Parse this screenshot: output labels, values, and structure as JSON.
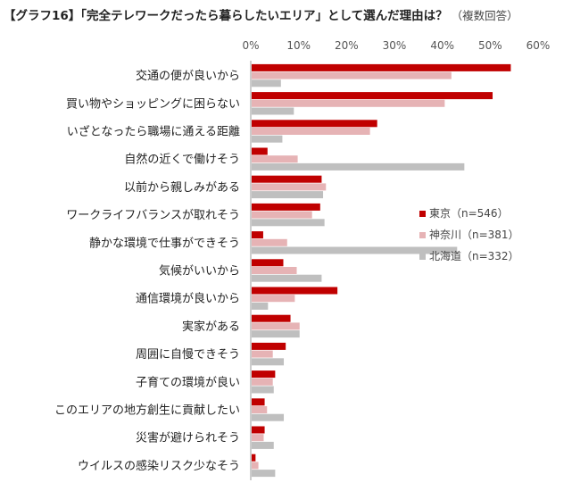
{
  "title": "【グラフ16】「完全テレワークだったら暮らしたいエリア」として選んだ理由は？",
  "title_note": "（複数回答）",
  "chart_data": {
    "type": "bar",
    "orientation": "horizontal",
    "title": "【グラフ16】「完全テレワークだったら暮らしたいエリア」として選んだ理由は？（複数回答）",
    "xlim": [
      0,
      60
    ],
    "ticks": [
      "0%",
      "10%",
      "20%",
      "30%",
      "40%",
      "50%",
      "60%"
    ],
    "tick_values": [
      0,
      10,
      20,
      30,
      40,
      50,
      60
    ],
    "grid": false,
    "legend_position": "right",
    "categories": [
      "交通の便が良いから",
      "買い物やショッピングに困らない",
      "いざとなったら職場に通える距離",
      "自然の近くで働けそう",
      "以前から親しみがある",
      "ワークライフバランスが取れそう",
      "静かな環境で仕事ができそう",
      "気候がいいから",
      "通信環境が良いから",
      "実家がある",
      "周囲に自慢できそう",
      "子育ての環境が良い",
      "このエリアの地方創生に貢献したい",
      "災害が避けられそう",
      "ウイルスの感染リスク少なそう"
    ],
    "series": [
      {
        "name": "東京（n=546）",
        "color": "#c00000",
        "values": [
          54.3,
          50.5,
          26.4,
          3.5,
          14.8,
          14.5,
          2.6,
          6.8,
          18.1,
          8.3,
          7.3,
          5.1,
          2.9,
          2.9,
          1.0
        ]
      },
      {
        "name": "神奈川（n=381）",
        "color": "#e6b3b5",
        "values": [
          41.9,
          40.5,
          24.9,
          9.8,
          15.7,
          12.8,
          7.6,
          9.6,
          9.2,
          10.2,
          4.6,
          4.6,
          3.4,
          2.7,
          1.6
        ]
      },
      {
        "name": "北海道（n=332）",
        "color": "#bfbfbf",
        "values": [
          6.3,
          9.0,
          6.6,
          44.6,
          15.1,
          15.4,
          43.1,
          14.8,
          3.6,
          10.2,
          6.9,
          4.8,
          6.9,
          4.8,
          5.1
        ]
      }
    ]
  }
}
